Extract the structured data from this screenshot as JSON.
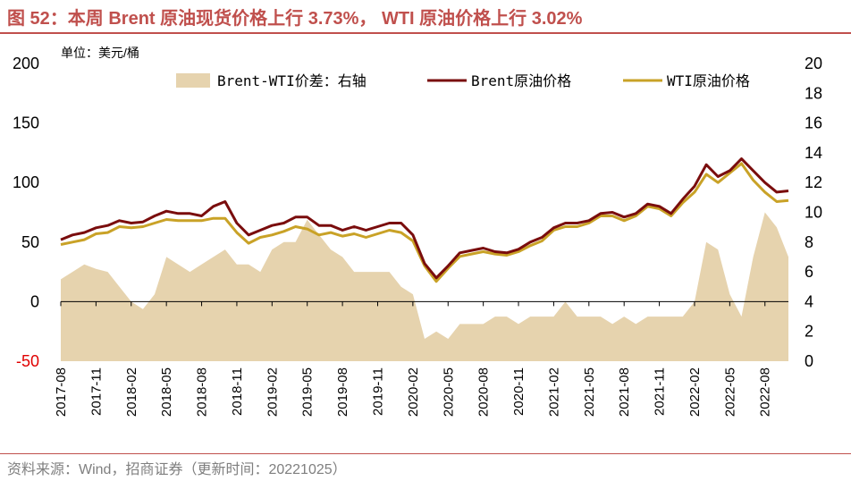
{
  "page": {
    "title": "图 52：本周 Brent 原油现货价格上行 3.73%， WTI 原油价格上行 3.02%",
    "source": "资料来源：Wind，招商证券（更新时间：20221025）"
  },
  "chart_data": {
    "type": "line",
    "unit_label": "单位：美元/桶",
    "y_left": {
      "ylim": [
        -50,
        200
      ],
      "ticks": [
        -50,
        0,
        50,
        100,
        150,
        200
      ]
    },
    "y_right": {
      "ylim": [
        0,
        20
      ],
      "ticks": [
        0,
        2,
        4,
        6,
        8,
        10,
        12,
        14,
        16,
        18,
        20
      ]
    },
    "x_ticks": [
      "2017-08",
      "2017-11",
      "2018-02",
      "2018-05",
      "2018-08",
      "2018-11",
      "2019-02",
      "2019-05",
      "2019-08",
      "2019-11",
      "2020-02",
      "2020-05",
      "2020-08",
      "2020-11",
      "2021-02",
      "2021-05",
      "2021-08",
      "2021-11",
      "2022-02",
      "2022-05",
      "2022-08"
    ],
    "x": [
      "2017-08",
      "2017-09",
      "2017-10",
      "2017-11",
      "2017-12",
      "2018-01",
      "2018-02",
      "2018-03",
      "2018-04",
      "2018-05",
      "2018-06",
      "2018-07",
      "2018-08",
      "2018-09",
      "2018-10",
      "2018-11",
      "2018-12",
      "2019-01",
      "2019-02",
      "2019-03",
      "2019-04",
      "2019-05",
      "2019-06",
      "2019-07",
      "2019-08",
      "2019-09",
      "2019-10",
      "2019-11",
      "2019-12",
      "2020-01",
      "2020-02",
      "2020-03",
      "2020-04",
      "2020-05",
      "2020-06",
      "2020-07",
      "2020-08",
      "2020-09",
      "2020-10",
      "2020-11",
      "2020-12",
      "2021-01",
      "2021-02",
      "2021-03",
      "2021-04",
      "2021-05",
      "2021-06",
      "2021-07",
      "2021-08",
      "2021-09",
      "2021-10",
      "2021-11",
      "2021-12",
      "2022-01",
      "2022-02",
      "2022-03",
      "2022-04",
      "2022-05",
      "2022-06",
      "2022-07",
      "2022-08",
      "2022-09",
      "2022-10"
    ],
    "series": [
      {
        "name": "Brent-WTI价差：右轴",
        "axis": "right",
        "kind": "area",
        "color": "#e6d3ae",
        "values": [
          5.5,
          6.0,
          6.5,
          6.2,
          6.0,
          5.0,
          4.0,
          3.5,
          4.5,
          7.0,
          6.5,
          6.0,
          6.5,
          7.0,
          7.5,
          6.5,
          6.5,
          6.0,
          7.5,
          8.0,
          8.0,
          9.5,
          8.5,
          7.5,
          7.0,
          6.0,
          6.0,
          6.0,
          6.0,
          5.0,
          4.5,
          1.5,
          2.0,
          1.5,
          2.5,
          2.5,
          2.5,
          3.0,
          3.0,
          2.5,
          3.0,
          3.0,
          3.0,
          4.0,
          3.0,
          3.0,
          3.0,
          2.5,
          3.0,
          2.5,
          3.0,
          3.0,
          3.0,
          3.0,
          4.0,
          8.0,
          7.5,
          4.5,
          3.0,
          7.0,
          10.0,
          9.0,
          7.0
        ]
      },
      {
        "name": "Brent原油价格",
        "axis": "left",
        "kind": "line",
        "color": "#7a0d0d",
        "values": [
          52,
          56,
          58,
          62,
          64,
          68,
          66,
          67,
          72,
          76,
          74,
          74,
          72,
          80,
          84,
          66,
          56,
          60,
          64,
          66,
          71,
          71,
          64,
          64,
          60,
          63,
          60,
          63,
          66,
          66,
          56,
          32,
          20,
          30,
          41,
          43,
          45,
          42,
          41,
          44,
          50,
          54,
          62,
          66,
          66,
          68,
          74,
          75,
          71,
          74,
          82,
          80,
          74,
          86,
          97,
          115,
          105,
          110,
          120,
          110,
          100,
          92,
          93
        ]
      },
      {
        "name": "WTI原油价格",
        "axis": "left",
        "kind": "line",
        "color": "#c9a227",
        "values": [
          48,
          50,
          52,
          57,
          58,
          63,
          62,
          63,
          66,
          69,
          68,
          68,
          68,
          70,
          70,
          58,
          49,
          54,
          56,
          59,
          63,
          61,
          56,
          58,
          55,
          57,
          54,
          57,
          60,
          58,
          51,
          30,
          17,
          28,
          38,
          40,
          42,
          40,
          39,
          42,
          47,
          51,
          60,
          63,
          63,
          66,
          72,
          72,
          68,
          72,
          80,
          78,
          72,
          83,
          92,
          107,
          100,
          108,
          116,
          102,
          92,
          84,
          85
        ]
      }
    ]
  }
}
